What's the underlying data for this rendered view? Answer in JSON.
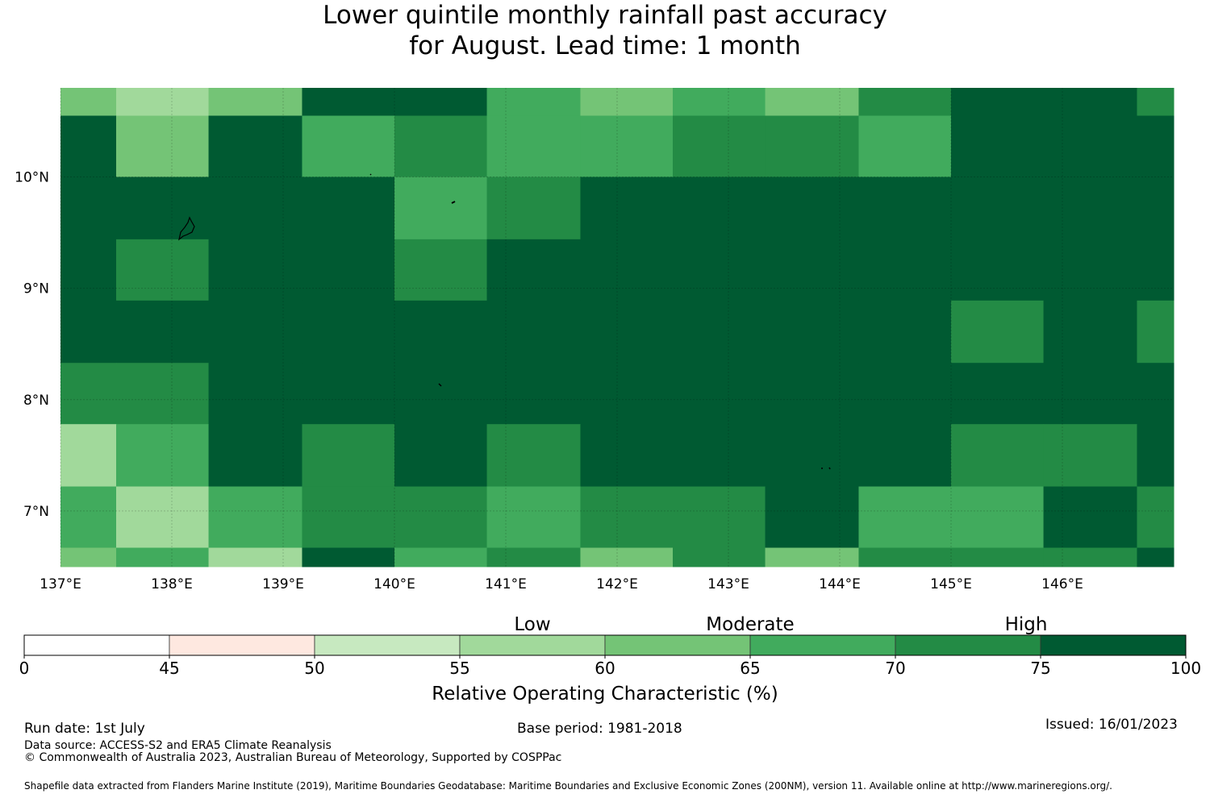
{
  "title_line1": "Lower quintile monthly rainfall past accuracy",
  "title_line2": "for August. Lead time: 1 month",
  "chart_data": {
    "type": "heatmap",
    "x_ticks": [
      "137°E",
      "138°E",
      "139°E",
      "140°E",
      "141°E",
      "142°E",
      "143°E",
      "144°E",
      "145°E",
      "146°E"
    ],
    "x_tick_values": [
      137,
      138,
      139,
      140,
      141,
      142,
      143,
      144,
      145,
      146
    ],
    "y_ticks": [
      "10°N",
      "9°N",
      "8°N",
      "7°N"
    ],
    "y_tick_values": [
      10,
      9,
      8,
      7
    ],
    "lon_range": [
      137,
      147
    ],
    "lat_range": [
      6.5,
      10.8
    ],
    "grid_lon_edges": [
      137.0,
      137.5,
      138.33,
      139.17,
      140.0,
      140.83,
      141.67,
      142.5,
      143.33,
      144.17,
      145.0,
      145.83,
      146.67,
      147.0
    ],
    "grid_lat_edges": [
      10.8,
      10.55,
      10.0,
      9.44,
      8.89,
      8.33,
      7.78,
      7.22,
      6.67,
      6.5
    ],
    "cells": [
      [
        62,
        57,
        62,
        80,
        80,
        67,
        62,
        67,
        62,
        72,
        80,
        80,
        72
      ],
      [
        80,
        62,
        80,
        67,
        72,
        67,
        67,
        72,
        72,
        67,
        80,
        80,
        80
      ],
      [
        80,
        80,
        80,
        80,
        67,
        72,
        80,
        80,
        80,
        80,
        80,
        80,
        80
      ],
      [
        80,
        72,
        80,
        80,
        72,
        80,
        80,
        80,
        80,
        80,
        80,
        80,
        80
      ],
      [
        80,
        80,
        80,
        80,
        80,
        80,
        80,
        80,
        80,
        80,
        72,
        80,
        72
      ],
      [
        72,
        72,
        80,
        80,
        80,
        80,
        80,
        80,
        80,
        80,
        80,
        80,
        80
      ],
      [
        57,
        67,
        80,
        72,
        80,
        72,
        80,
        80,
        80,
        80,
        72,
        72,
        80
      ],
      [
        67,
        57,
        67,
        72,
        72,
        67,
        72,
        72,
        80,
        67,
        67,
        80,
        72
      ],
      [
        62,
        67,
        57,
        80,
        67,
        72,
        62,
        72,
        62,
        72,
        72,
        72,
        80
      ]
    ],
    "colorbar": {
      "bounds": [
        0,
        45,
        50,
        55,
        60,
        65,
        70,
        75,
        100
      ],
      "tick_labels": [
        "0",
        "45",
        "50",
        "55",
        "60",
        "65",
        "70",
        "75",
        "100"
      ],
      "colors": [
        "#ffffff",
        "#fee8e0",
        "#c7e9c0",
        "#a1d99b",
        "#74c476",
        "#41ab5d",
        "#238b45",
        "#005a32"
      ],
      "category_labels": [
        "Low",
        "Moderate",
        "High"
      ],
      "label": "Relative Operating Characteristic (%)"
    }
  },
  "footer": {
    "run_date": "Run date: 1st July",
    "base_period": "Base period: 1981-2018",
    "issued": "Issued: 16/01/2023",
    "data_source": "Data source: ACCESS-S2 and ERA5 Climate Reanalysis",
    "copyright": "© Commonwealth of Australia 2023, Australian Bureau of Meteorology, Supported by COSPPac",
    "shapefile": "Shapefile data extracted from Flanders Marine Institute (2019), Maritime Boundaries Geodatabase: Maritime Boundaries and Exclusive Economic Zones (200NM), version 11. Available online at http://www.marineregions.org/."
  }
}
